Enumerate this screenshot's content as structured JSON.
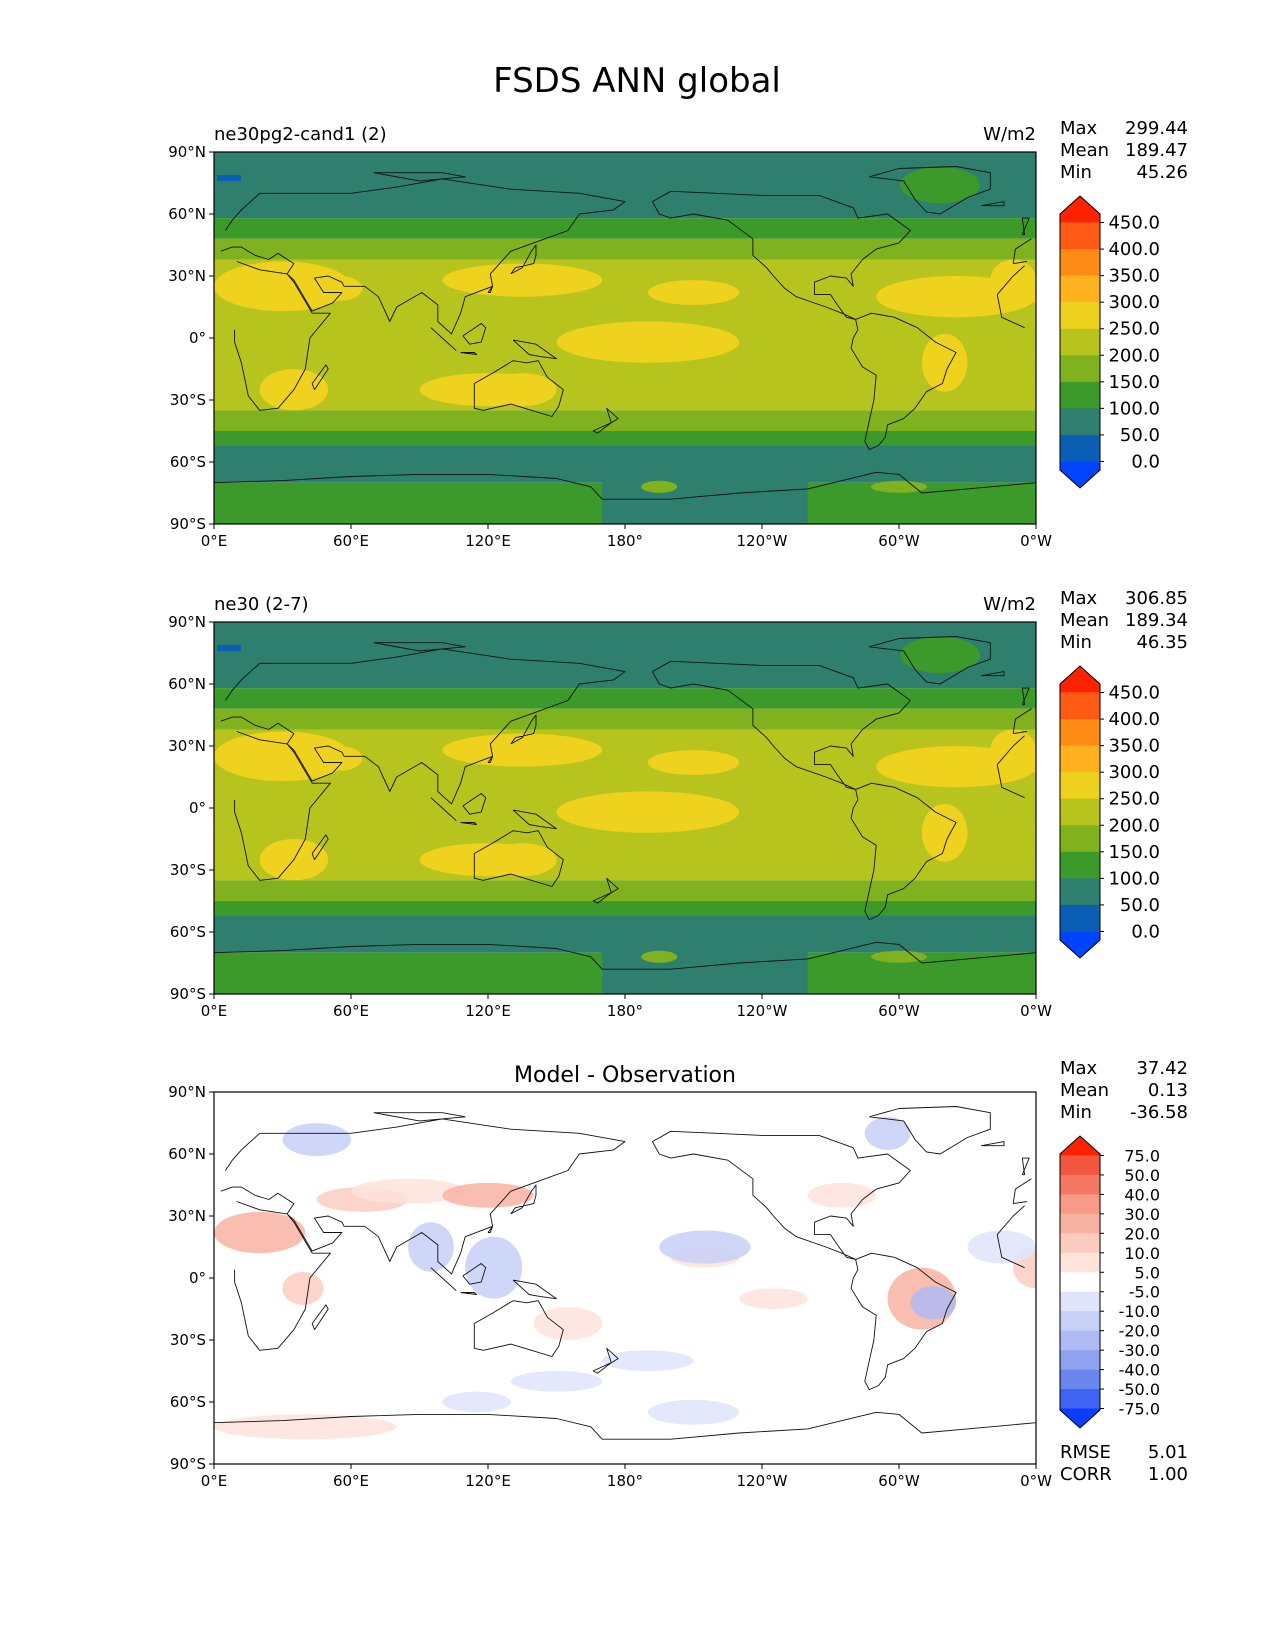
{
  "figure": {
    "title": "FSDS ANN global",
    "longitude_ticks": [
      "0°E",
      "60°E",
      "120°E",
      "180°",
      "120°W",
      "60°W",
      "0°W"
    ],
    "latitude_ticks": [
      "90°N",
      "60°N",
      "30°N",
      "0°",
      "30°S",
      "60°S",
      "90°S"
    ]
  },
  "panels": [
    {
      "id": "model",
      "title_left": "ne30pg2-cand1 (2)",
      "title_center": "",
      "units": "W/m2",
      "stats": {
        "max_label": "Max",
        "max": "299.44",
        "mean_label": "Mean",
        "mean": "189.47",
        "min_label": "Min",
        "min": "45.26"
      },
      "colorbar": {
        "labels": [
          "450.0",
          "400.0",
          "350.0",
          "300.0",
          "250.0",
          "200.0",
          "150.0",
          "100.0",
          "50.0",
          "0.0"
        ],
        "colors": [
          "#ff2200",
          "#ff5a14",
          "#ff8a14",
          "#ffb21e",
          "#eed21e",
          "#b8c41e",
          "#7fb21e",
          "#3c9a2a",
          "#2e7f6e",
          "#0a5fb4",
          "#0044ff"
        ]
      },
      "field_colors": {
        "polar": "#2e7f6e",
        "midlat": "#3c9a2a",
        "subpolar": "#7fb21e",
        "tropical": "#b8c41e",
        "subtropical": "#eed21e",
        "arctic_ice": "#0a5fb4"
      }
    },
    {
      "id": "obs",
      "title_left": "ne30 (2-7)",
      "title_center": "",
      "units": "W/m2",
      "stats": {
        "max_label": "Max",
        "max": "306.85",
        "mean_label": "Mean",
        "mean": "189.34",
        "min_label": "Min",
        "min": "46.35"
      },
      "colorbar": {
        "labels": [
          "450.0",
          "400.0",
          "350.0",
          "300.0",
          "250.0",
          "200.0",
          "150.0",
          "100.0",
          "50.0",
          "0.0"
        ],
        "colors": [
          "#ff2200",
          "#ff5a14",
          "#ff8a14",
          "#ffb21e",
          "#eed21e",
          "#b8c41e",
          "#7fb21e",
          "#3c9a2a",
          "#2e7f6e",
          "#0a5fb4",
          "#0044ff"
        ]
      },
      "field_colors": {
        "polar": "#2e7f6e",
        "midlat": "#3c9a2a",
        "subpolar": "#7fb21e",
        "tropical": "#b8c41e",
        "subtropical": "#eed21e",
        "arctic_ice": "#0a5fb4"
      }
    },
    {
      "id": "diff",
      "title_left": "",
      "title_center": "Model - Observation",
      "units": "",
      "stats": {
        "max_label": "Max",
        "max": "37.42",
        "mean_label": "Mean",
        "mean": "0.13",
        "min_label": "Min",
        "min": "-36.58"
      },
      "colorbar": {
        "labels": [
          "75.0",
          "50.0",
          "40.0",
          "30.0",
          "20.0",
          "10.0",
          "5.0",
          "-5.0",
          "-10.0",
          "-20.0",
          "-30.0",
          "-40.0",
          "-50.0",
          "-75.0"
        ],
        "colors": [
          "#ff2200",
          "#f2563f",
          "#f47862",
          "#f79a86",
          "#f9b3a3",
          "#fbcdc0",
          "#fde3da",
          "#ffffff",
          "#dfe4fb",
          "#c7d0f7",
          "#aebbf2",
          "#8fa2ee",
          "#6a86ec",
          "#3f63f2",
          "#0a3dff"
        ]
      },
      "bottom_stats": {
        "rmse_label": "RMSE",
        "rmse": "5.01",
        "corr_label": "CORR",
        "corr": "1.00"
      }
    }
  ]
}
